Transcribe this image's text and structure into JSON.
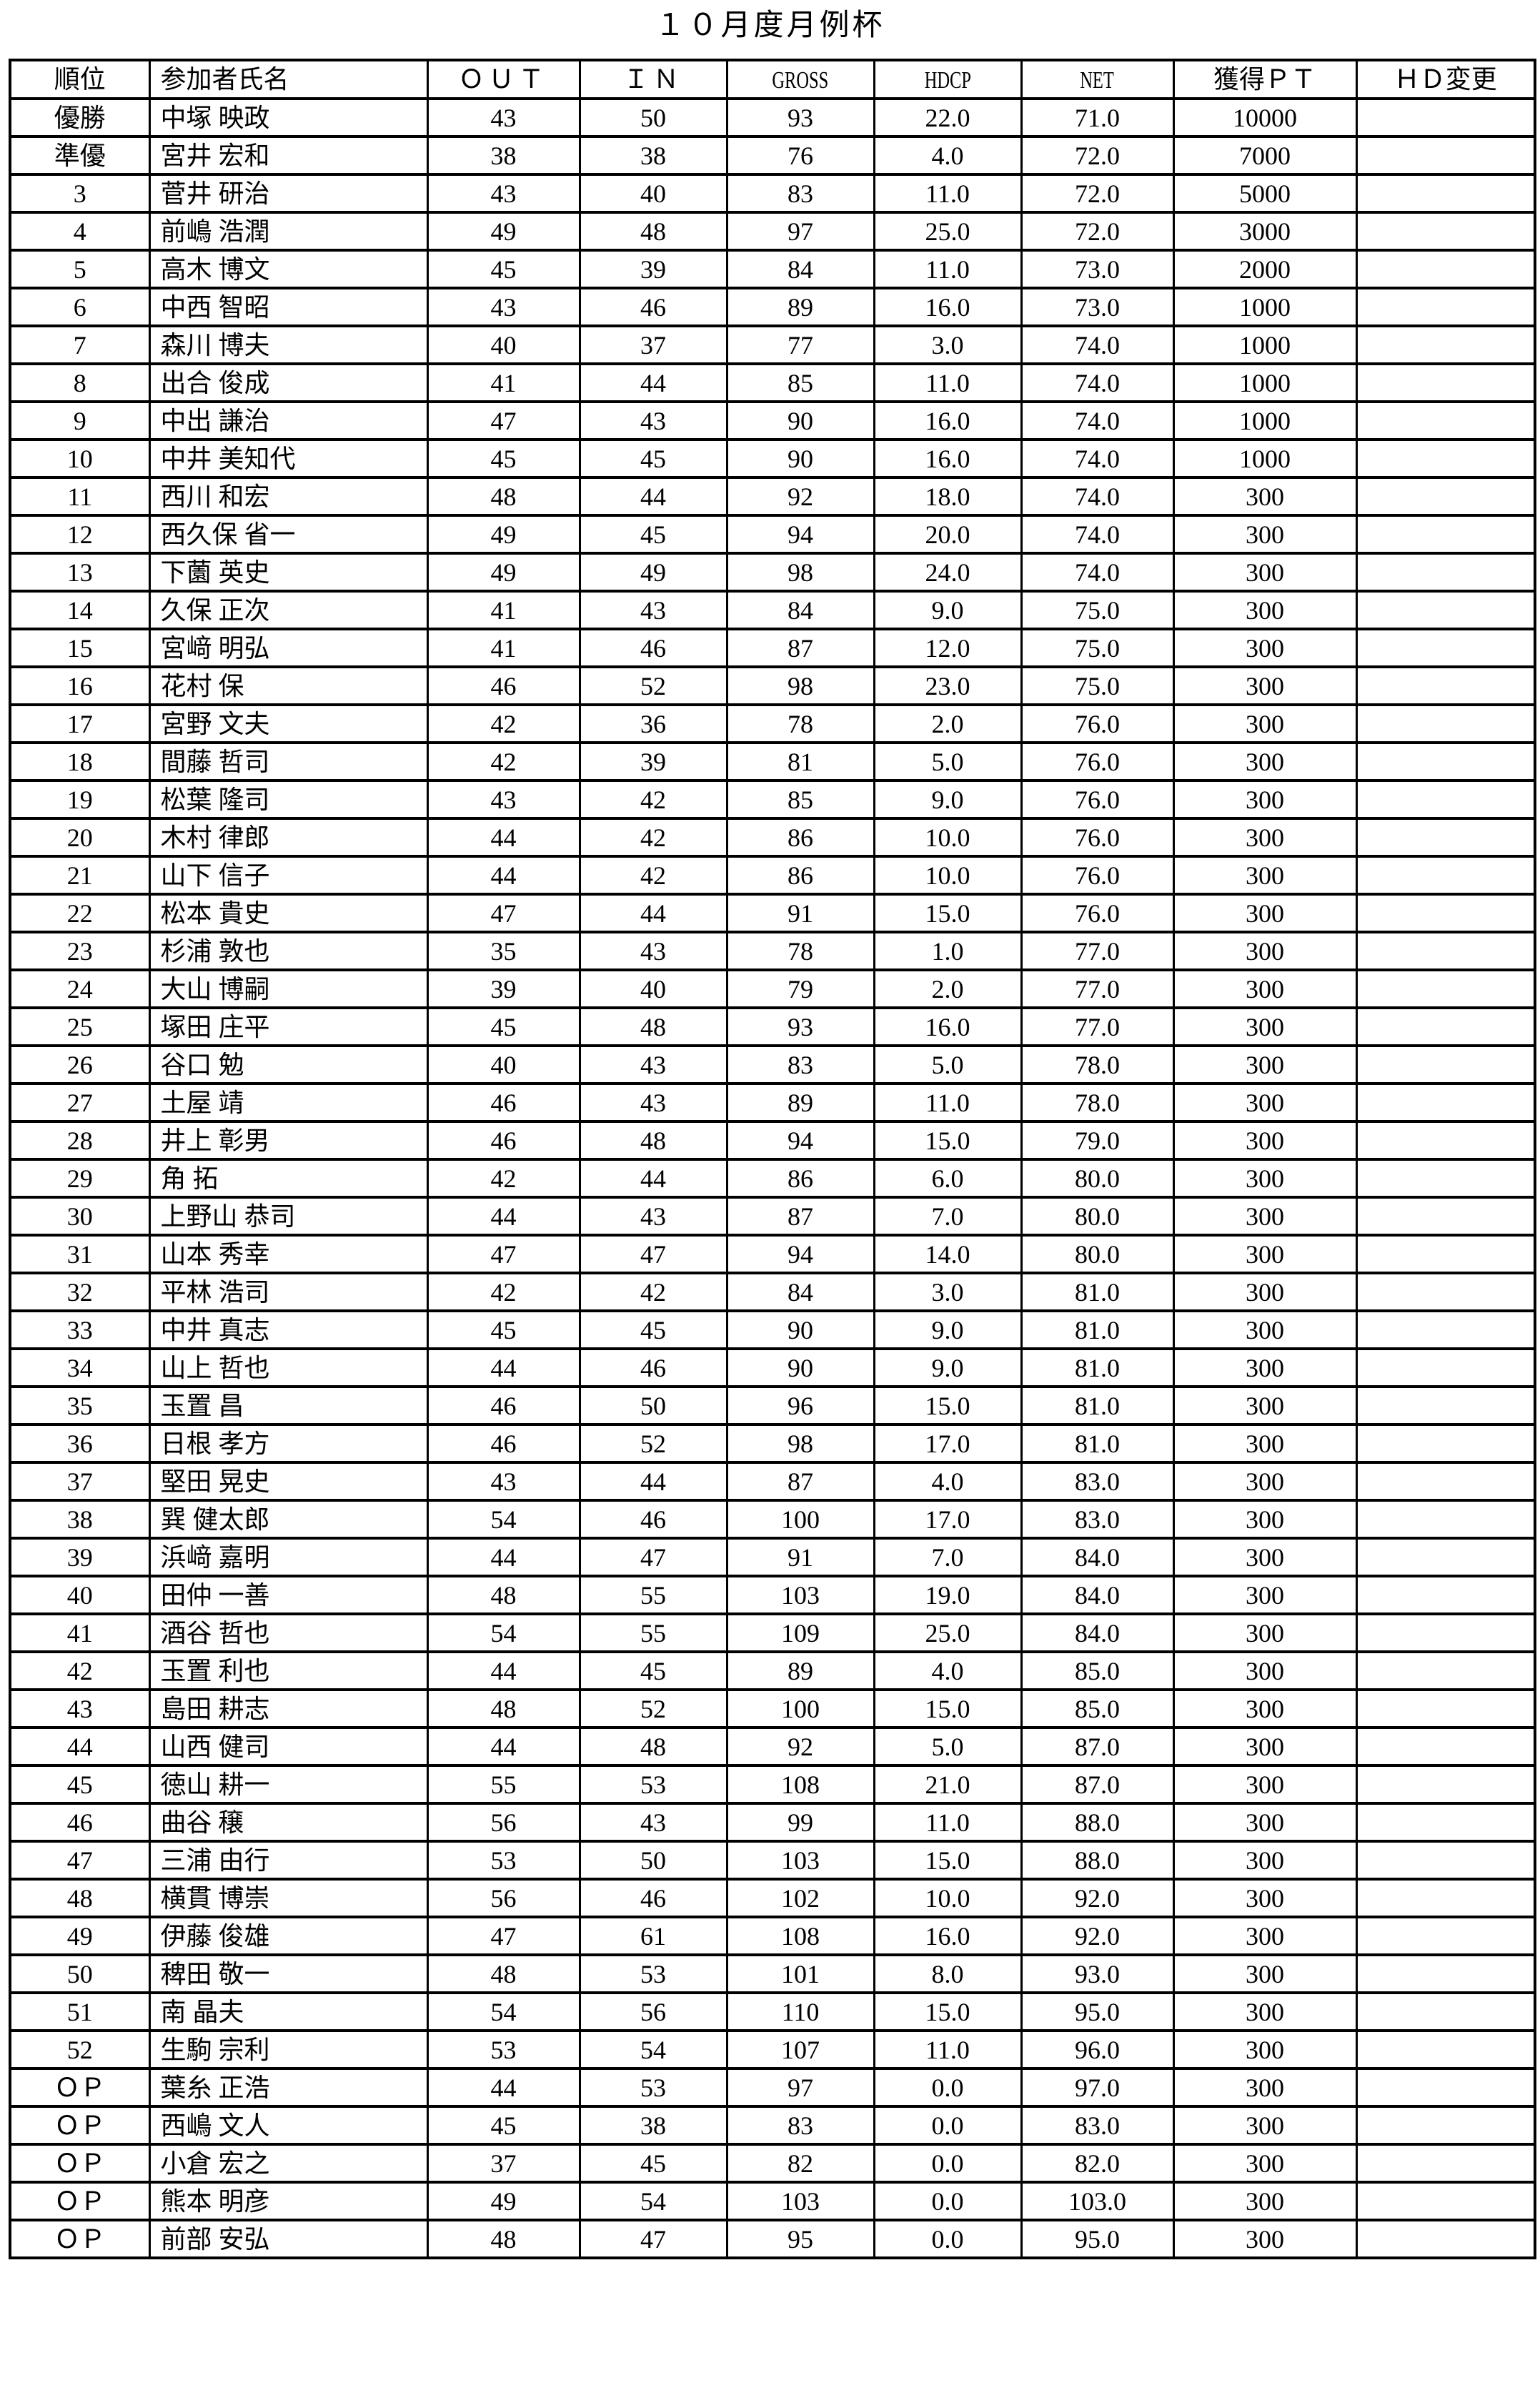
{
  "title": "１０月度月例杯",
  "table": {
    "headers": {
      "rank": "順位",
      "name": "参加者氏名",
      "out": "ＯＵＴ",
      "in": "ＩＮ",
      "gross": "GROSS",
      "hdcp": "HDCP",
      "net": "NET",
      "pt": "獲得ＰＴ",
      "hd_change": "ＨＤ変更"
    },
    "rows": [
      [
        "優勝",
        "中塚 映政",
        "43",
        "50",
        "93",
        "22.0",
        "71.0",
        "10000",
        ""
      ],
      [
        "準優",
        "宮井 宏和",
        "38",
        "38",
        "76",
        "4.0",
        "72.0",
        "7000",
        ""
      ],
      [
        "3",
        "菅井 研治",
        "43",
        "40",
        "83",
        "11.0",
        "72.0",
        "5000",
        ""
      ],
      [
        "4",
        "前嶋 浩潤",
        "49",
        "48",
        "97",
        "25.0",
        "72.0",
        "3000",
        ""
      ],
      [
        "5",
        "高木 博文",
        "45",
        "39",
        "84",
        "11.0",
        "73.0",
        "2000",
        ""
      ],
      [
        "6",
        "中西 智昭",
        "43",
        "46",
        "89",
        "16.0",
        "73.0",
        "1000",
        ""
      ],
      [
        "7",
        "森川 博夫",
        "40",
        "37",
        "77",
        "3.0",
        "74.0",
        "1000",
        ""
      ],
      [
        "8",
        "出合 俊成",
        "41",
        "44",
        "85",
        "11.0",
        "74.0",
        "1000",
        ""
      ],
      [
        "9",
        "中出 謙治",
        "47",
        "43",
        "90",
        "16.0",
        "74.0",
        "1000",
        ""
      ],
      [
        "10",
        "中井 美知代",
        "45",
        "45",
        "90",
        "16.0",
        "74.0",
        "1000",
        ""
      ],
      [
        "11",
        "西川 和宏",
        "48",
        "44",
        "92",
        "18.0",
        "74.0",
        "300",
        ""
      ],
      [
        "12",
        "西久保 省一",
        "49",
        "45",
        "94",
        "20.0",
        "74.0",
        "300",
        ""
      ],
      [
        "13",
        "下薗 英史",
        "49",
        "49",
        "98",
        "24.0",
        "74.0",
        "300",
        ""
      ],
      [
        "14",
        "久保 正次",
        "41",
        "43",
        "84",
        "9.0",
        "75.0",
        "300",
        ""
      ],
      [
        "15",
        "宮﨑 明弘",
        "41",
        "46",
        "87",
        "12.0",
        "75.0",
        "300",
        ""
      ],
      [
        "16",
        "花村 保",
        "46",
        "52",
        "98",
        "23.0",
        "75.0",
        "300",
        ""
      ],
      [
        "17",
        "宮野 文夫",
        "42",
        "36",
        "78",
        "2.0",
        "76.0",
        "300",
        ""
      ],
      [
        "18",
        "間藤 哲司",
        "42",
        "39",
        "81",
        "5.0",
        "76.0",
        "300",
        ""
      ],
      [
        "19",
        "松葉 隆司",
        "43",
        "42",
        "85",
        "9.0",
        "76.0",
        "300",
        ""
      ],
      [
        "20",
        "木村 律郎",
        "44",
        "42",
        "86",
        "10.0",
        "76.0",
        "300",
        ""
      ],
      [
        "21",
        "山下 信子",
        "44",
        "42",
        "86",
        "10.0",
        "76.0",
        "300",
        ""
      ],
      [
        "22",
        "松本 貴史",
        "47",
        "44",
        "91",
        "15.0",
        "76.0",
        "300",
        ""
      ],
      [
        "23",
        "杉浦 敦也",
        "35",
        "43",
        "78",
        "1.0",
        "77.0",
        "300",
        ""
      ],
      [
        "24",
        "大山 博嗣",
        "39",
        "40",
        "79",
        "2.0",
        "77.0",
        "300",
        ""
      ],
      [
        "25",
        "塚田 庄平",
        "45",
        "48",
        "93",
        "16.0",
        "77.0",
        "300",
        ""
      ],
      [
        "26",
        "谷口 勉",
        "40",
        "43",
        "83",
        "5.0",
        "78.0",
        "300",
        ""
      ],
      [
        "27",
        "土屋 靖",
        "46",
        "43",
        "89",
        "11.0",
        "78.0",
        "300",
        ""
      ],
      [
        "28",
        "井上 彰男",
        "46",
        "48",
        "94",
        "15.0",
        "79.0",
        "300",
        ""
      ],
      [
        "29",
        "角 拓",
        "42",
        "44",
        "86",
        "6.0",
        "80.0",
        "300",
        ""
      ],
      [
        "30",
        "上野山 恭司",
        "44",
        "43",
        "87",
        "7.0",
        "80.0",
        "300",
        ""
      ],
      [
        "31",
        "山本 秀幸",
        "47",
        "47",
        "94",
        "14.0",
        "80.0",
        "300",
        ""
      ],
      [
        "32",
        "平林 浩司",
        "42",
        "42",
        "84",
        "3.0",
        "81.0",
        "300",
        ""
      ],
      [
        "33",
        "中井 真志",
        "45",
        "45",
        "90",
        "9.0",
        "81.0",
        "300",
        ""
      ],
      [
        "34",
        "山上 哲也",
        "44",
        "46",
        "90",
        "9.0",
        "81.0",
        "300",
        ""
      ],
      [
        "35",
        "玉置 昌",
        "46",
        "50",
        "96",
        "15.0",
        "81.0",
        "300",
        ""
      ],
      [
        "36",
        "日根 孝方",
        "46",
        "52",
        "98",
        "17.0",
        "81.0",
        "300",
        ""
      ],
      [
        "37",
        "堅田 晃史",
        "43",
        "44",
        "87",
        "4.0",
        "83.0",
        "300",
        ""
      ],
      [
        "38",
        "巽 健太郎",
        "54",
        "46",
        "100",
        "17.0",
        "83.0",
        "300",
        ""
      ],
      [
        "39",
        "浜﨑 嘉明",
        "44",
        "47",
        "91",
        "7.0",
        "84.0",
        "300",
        ""
      ],
      [
        "40",
        "田仲 一善",
        "48",
        "55",
        "103",
        "19.0",
        "84.0",
        "300",
        ""
      ],
      [
        "41",
        "酒谷 哲也",
        "54",
        "55",
        "109",
        "25.0",
        "84.0",
        "300",
        ""
      ],
      [
        "42",
        "玉置 利也",
        "44",
        "45",
        "89",
        "4.0",
        "85.0",
        "300",
        ""
      ],
      [
        "43",
        "島田 耕志",
        "48",
        "52",
        "100",
        "15.0",
        "85.0",
        "300",
        ""
      ],
      [
        "44",
        "山西 健司",
        "44",
        "48",
        "92",
        "5.0",
        "87.0",
        "300",
        ""
      ],
      [
        "45",
        "徳山 耕一",
        "55",
        "53",
        "108",
        "21.0",
        "87.0",
        "300",
        ""
      ],
      [
        "46",
        "曲谷 穣",
        "56",
        "43",
        "99",
        "11.0",
        "88.0",
        "300",
        ""
      ],
      [
        "47",
        "三浦 由行",
        "53",
        "50",
        "103",
        "15.0",
        "88.0",
        "300",
        ""
      ],
      [
        "48",
        "横貫 博崇",
        "56",
        "46",
        "102",
        "10.0",
        "92.0",
        "300",
        ""
      ],
      [
        "49",
        "伊藤 俊雄",
        "47",
        "61",
        "108",
        "16.0",
        "92.0",
        "300",
        ""
      ],
      [
        "50",
        "稗田 敬一",
        "48",
        "53",
        "101",
        "8.0",
        "93.0",
        "300",
        ""
      ],
      [
        "51",
        "南 晶夫",
        "54",
        "56",
        "110",
        "15.0",
        "95.0",
        "300",
        ""
      ],
      [
        "52",
        "生駒 宗利",
        "53",
        "54",
        "107",
        "11.0",
        "96.0",
        "300",
        ""
      ],
      [
        "ＯＰ",
        "葉糸 正浩",
        "44",
        "53",
        "97",
        "0.0",
        "97.0",
        "300",
        ""
      ],
      [
        "ＯＰ",
        "西嶋 文人",
        "45",
        "38",
        "83",
        "0.0",
        "83.0",
        "300",
        ""
      ],
      [
        "ＯＰ",
        "小倉 宏之",
        "37",
        "45",
        "82",
        "0.0",
        "82.0",
        "300",
        ""
      ],
      [
        "ＯＰ",
        "熊本 明彦",
        "49",
        "54",
        "103",
        "0.0",
        "103.0",
        "300",
        ""
      ],
      [
        "ＯＰ",
        "前部 安弘",
        "48",
        "47",
        "95",
        "0.0",
        "95.0",
        "300",
        ""
      ]
    ]
  }
}
